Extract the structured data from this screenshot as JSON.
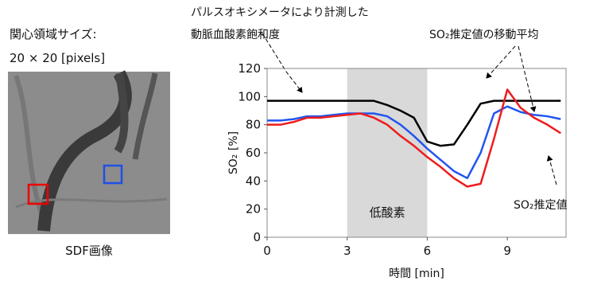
{
  "image_panel": {
    "roi_label": "関心領域サイズ:",
    "roi_size": "20 × 20 [pixels]",
    "caption": "SDF画像"
  },
  "chart_data": {
    "type": "line",
    "annotations": [
      "パルスオキシメータにより計測した",
      "動脈血酸素飽和度",
      "SO₂推定値の移動平均",
      "SO₂推定値"
    ],
    "shaded_region": {
      "range": [
        3,
        6
      ],
      "label": "低酸素",
      "color": "#d9d9d9"
    },
    "x_label": "時間 [min]",
    "y_label": "SO₂ [%]",
    "x": [
      0,
      0.5,
      1,
      1.5,
      2,
      2.5,
      3,
      3.5,
      4,
      4.5,
      5,
      5.5,
      6,
      6.5,
      7,
      7.5,
      8,
      8.5,
      9,
      9.5,
      10,
      10.5,
      11
    ],
    "series": [
      {
        "color": "#000000",
        "values": [
          97,
          97,
          97,
          97,
          97,
          97,
          97,
          97,
          97,
          94,
          90,
          85,
          68,
          65,
          66,
          80,
          95,
          97,
          97,
          97,
          97,
          97,
          97
        ]
      },
      {
        "color": "#2255ee",
        "values": [
          83,
          83,
          84,
          86,
          86,
          87,
          88,
          88,
          88,
          86,
          80,
          72,
          63,
          55,
          47,
          42,
          60,
          88,
          93,
          89,
          87,
          86,
          84
        ]
      },
      {
        "color": "#ee1c1c",
        "values": [
          80,
          80,
          82,
          85,
          85,
          86,
          87,
          88,
          85,
          80,
          72,
          65,
          57,
          50,
          42,
          36,
          38,
          70,
          105,
          92,
          85,
          80,
          74
        ]
      }
    ],
    "xlim": [
      0,
      11.2
    ],
    "ylim": [
      0,
      120
    ],
    "xticks": [
      0,
      3,
      6,
      9
    ],
    "yticks": [
      0,
      20,
      40,
      60,
      80,
      100,
      120
    ]
  }
}
